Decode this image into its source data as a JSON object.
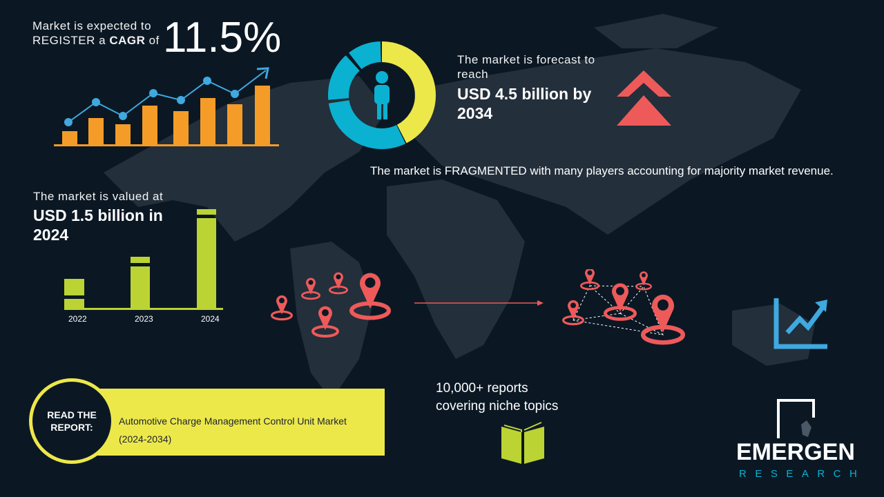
{
  "cagr": {
    "line1": "Market is expected to",
    "line2_pre": "REGISTER a ",
    "line2_bold": "CAGR",
    "line2_post": " of",
    "value": "11.5%"
  },
  "forecast": {
    "label": "The market is forecast to reach",
    "value": "USD 4.5 billion by 2034"
  },
  "fragmented": "The market is FRAGMENTED with many players accounting for majority market revenue.",
  "valued": {
    "label": "The market is valued at",
    "value": "USD 1.5 billion in 2024"
  },
  "year_labels": [
    "2022",
    "2023",
    "2024"
  ],
  "reports": {
    "line1": "10,000+ reports",
    "line2": "covering niche topics"
  },
  "read": {
    "badge": "READ THE REPORT:",
    "title": "Automotive Charge Management Control Unit Market (2024-2034)"
  },
  "logo": {
    "name": "EMERGEN",
    "sub": "RESEARCH"
  },
  "colors": {
    "background": "#0b1824",
    "orange": "#f59c28",
    "blue": "#3fa9e0",
    "yellow": "#ede84a",
    "green": "#bcd334",
    "red": "#ee5a5a",
    "teal": "#0bb1d1"
  },
  "icons": [
    "bar-line-growth-icon",
    "donut-person-icon",
    "double-chevron-up-icon",
    "location-pin-icon",
    "trend-up-icon",
    "open-book-icon"
  ]
}
